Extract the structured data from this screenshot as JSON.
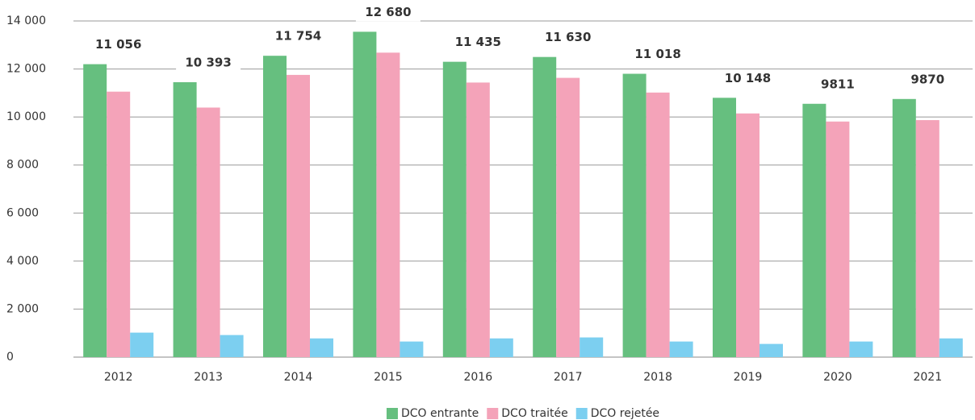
{
  "chart_data": {
    "type": "bar",
    "categories": [
      "2012",
      "2013",
      "2014",
      "2015",
      "2016",
      "2017",
      "2018",
      "2019",
      "2020",
      "2021"
    ],
    "series": [
      {
        "name": "DCO entrante",
        "color": "#66bf7f",
        "values": [
          12200,
          11450,
          12550,
          13550,
          12300,
          12500,
          11800,
          10800,
          10550,
          10750
        ]
      },
      {
        "name": "DCO traitée",
        "color": "#f4a3b9",
        "values": [
          11056,
          10393,
          11754,
          12680,
          11435,
          11630,
          11018,
          10148,
          9811,
          9870
        ],
        "value_labels": [
          "11 056",
          "10 393",
          "11 754",
          "12 680",
          "11 435",
          "11 630",
          "11 018",
          "10 148",
          "9811",
          "9870"
        ]
      },
      {
        "name": "DCO rejetée",
        "color": "#7ccff0",
        "values": [
          1020,
          920,
          780,
          650,
          780,
          820,
          650,
          550,
          650,
          780
        ]
      }
    ],
    "ylim": [
      0,
      14000
    ],
    "yticks": [
      0,
      {
        "value": 2000,
        "label": "2 000"
      },
      {
        "value": 4000,
        "label": "4 000"
      },
      {
        "value": 6000,
        "label": "6 000"
      },
      {
        "value": 8000,
        "label": "8 000"
      },
      {
        "value": 10000,
        "label": "10 000"
      },
      {
        "value": 12000,
        "label": "12 000"
      },
      {
        "value": 14000,
        "label": "14 000"
      }
    ],
    "grid": true,
    "legend": "bottom"
  }
}
